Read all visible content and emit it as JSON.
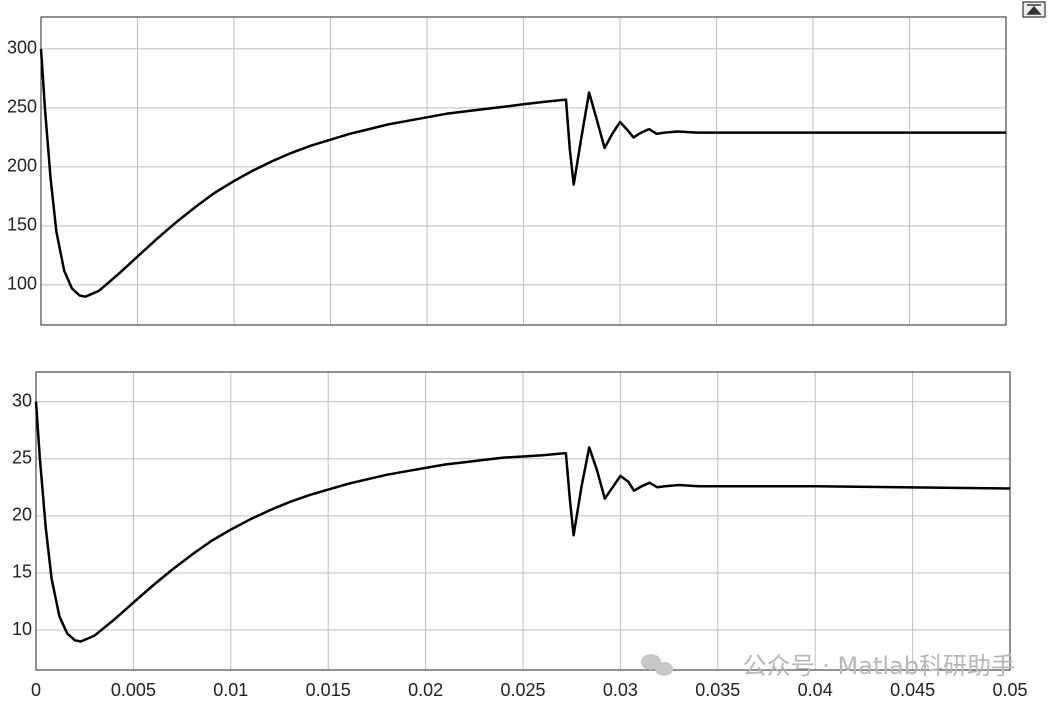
{
  "chart_data": [
    {
      "type": "line",
      "color": "#000000",
      "grid": true,
      "x": [
        0,
        0.0002,
        0.0005,
        0.0008,
        0.0012,
        0.0016,
        0.002,
        0.0023,
        0.003,
        0.004,
        0.005,
        0.006,
        0.007,
        0.008,
        0.009,
        0.01,
        0.011,
        0.012,
        0.013,
        0.014,
        0.015,
        0.016,
        0.017,
        0.018,
        0.019,
        0.02,
        0.021,
        0.022,
        0.023,
        0.024,
        0.025,
        0.026,
        0.0272,
        0.0274,
        0.0276,
        0.028,
        0.0284,
        0.0288,
        0.0292,
        0.0296,
        0.03,
        0.0304,
        0.0307,
        0.0311,
        0.0315,
        0.0319,
        0.0323,
        0.033,
        0.034,
        0.04,
        0.05
      ],
      "values": [
        300,
        250,
        190,
        145,
        112,
        97,
        91,
        90,
        95,
        109,
        124,
        139,
        153,
        166,
        178,
        188,
        197,
        205,
        212,
        218,
        223,
        228,
        232,
        236,
        239,
        242,
        245,
        247,
        249,
        251,
        253,
        255,
        257,
        215,
        185,
        225,
        263,
        240,
        216,
        228,
        238,
        231,
        225,
        229,
        232,
        228,
        229,
        230,
        229,
        229,
        229
      ],
      "xlim": [
        0,
        0.05
      ],
      "xticks": [
        0,
        0.005,
        0.01,
        0.015,
        0.02,
        0.025,
        0.03,
        0.035,
        0.04,
        0.045,
        0.05
      ],
      "ylim": [
        66,
        327
      ],
      "yticks": [
        100,
        150,
        200,
        250,
        300
      ]
    },
    {
      "type": "line",
      "color": "#000000",
      "grid": true,
      "x": [
        0,
        0.0002,
        0.0005,
        0.0008,
        0.0012,
        0.0016,
        0.002,
        0.0023,
        0.003,
        0.004,
        0.005,
        0.006,
        0.007,
        0.008,
        0.009,
        0.01,
        0.011,
        0.012,
        0.013,
        0.014,
        0.015,
        0.016,
        0.017,
        0.018,
        0.019,
        0.02,
        0.021,
        0.022,
        0.023,
        0.024,
        0.025,
        0.026,
        0.0272,
        0.0274,
        0.0276,
        0.028,
        0.0284,
        0.0288,
        0.0292,
        0.0296,
        0.03,
        0.0304,
        0.0307,
        0.0311,
        0.0315,
        0.0319,
        0.0323,
        0.033,
        0.034,
        0.04,
        0.05
      ],
      "values": [
        30,
        25,
        19,
        14.5,
        11.2,
        9.7,
        9.1,
        9.0,
        9.5,
        10.9,
        12.4,
        13.9,
        15.3,
        16.6,
        17.8,
        18.8,
        19.7,
        20.5,
        21.2,
        21.8,
        22.3,
        22.8,
        23.2,
        23.6,
        23.9,
        24.2,
        24.5,
        24.7,
        24.9,
        25.1,
        25.2,
        25.3,
        25.5,
        21.5,
        18.3,
        22.5,
        26.0,
        24.0,
        21.5,
        22.5,
        23.5,
        23.0,
        22.2,
        22.6,
        22.9,
        22.5,
        22.6,
        22.7,
        22.6,
        22.6,
        22.4
      ],
      "xlim": [
        0,
        0.05
      ],
      "xticks": [
        0,
        0.005,
        0.01,
        0.015,
        0.02,
        0.025,
        0.03,
        0.035,
        0.04,
        0.045,
        0.05
      ],
      "ylim": [
        6.5,
        32.6
      ],
      "yticks": [
        10,
        15,
        20,
        25,
        30
      ],
      "xtick_labels_shown": true
    }
  ],
  "watermark": "公众号 · Matlab科研助手"
}
